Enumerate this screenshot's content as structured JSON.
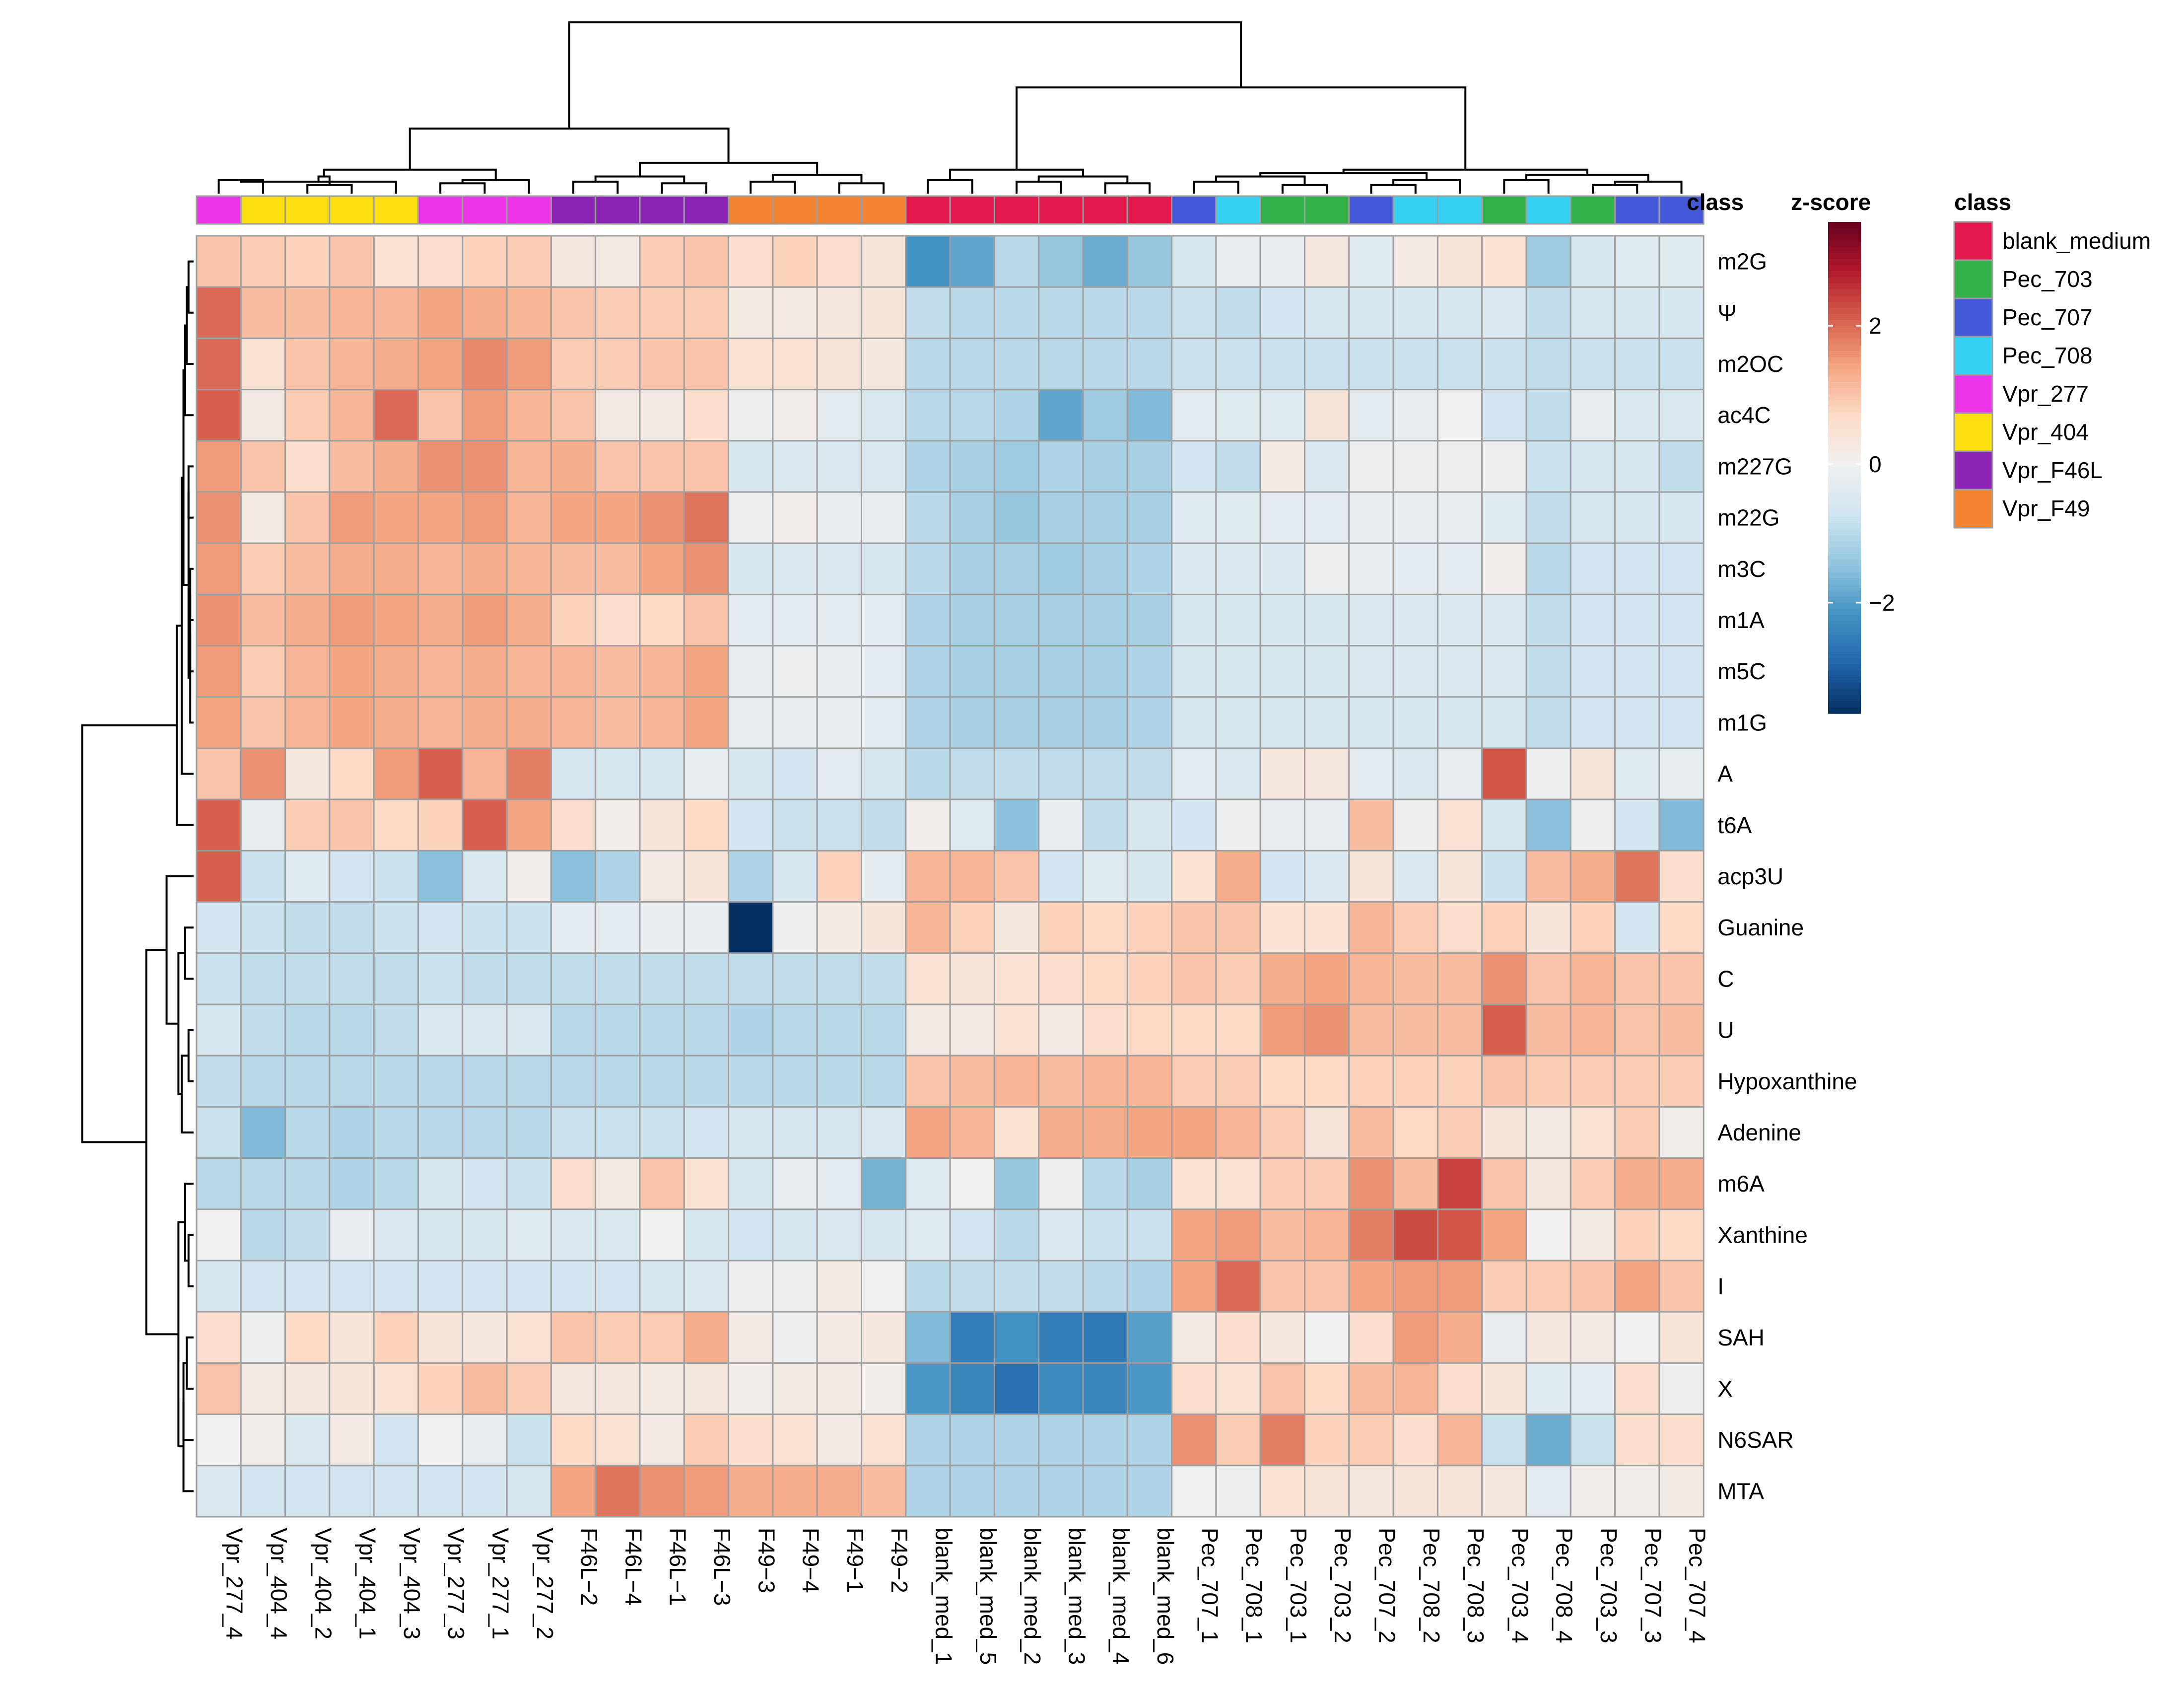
{
  "chart_data": {
    "type": "heatmap",
    "title": "",
    "columns": [
      "Vpr_277_4",
      "Vpr_404_4",
      "Vpr_404_2",
      "Vpr_404_1",
      "Vpr_404_3",
      "Vpr_277_3",
      "Vpr_277_1",
      "Vpr_277_2",
      "F46L−2",
      "F46L−4",
      "F46L−1",
      "F46L−3",
      "F49−3",
      "F49−4",
      "F49−1",
      "F49−2",
      "blank_med_1",
      "blank_med_5",
      "blank_med_2",
      "blank_med_3",
      "blank_med_4",
      "blank_med_6",
      "Pec_707_1",
      "Pec_708_1",
      "Pec_703_1",
      "Pec_703_2",
      "Pec_707_2",
      "Pec_708_2",
      "Pec_708_3",
      "Pec_703_4",
      "Pec_708_4",
      "Pec_703_3",
      "Pec_707_3",
      "Pec_707_4"
    ],
    "column_class": [
      "Vpr_277",
      "Vpr_404",
      "Vpr_404",
      "Vpr_404",
      "Vpr_404",
      "Vpr_277",
      "Vpr_277",
      "Vpr_277",
      "Vpr_F46L",
      "Vpr_F46L",
      "Vpr_F46L",
      "Vpr_F46L",
      "Vpr_F49",
      "Vpr_F49",
      "Vpr_F49",
      "Vpr_F49",
      "blank_medium",
      "blank_medium",
      "blank_medium",
      "blank_medium",
      "blank_medium",
      "blank_medium",
      "Pec_707",
      "Pec_708",
      "Pec_703",
      "Pec_703",
      "Pec_707",
      "Pec_708",
      "Pec_708",
      "Pec_703",
      "Pec_708",
      "Pec_703",
      "Pec_707",
      "Pec_707"
    ],
    "rows": [
      "m2G",
      "Ψ",
      "m2OC",
      "ac4C",
      "m227G",
      "m22G",
      "m3C",
      "m1A",
      "m5C",
      "m1G",
      "A",
      "t6A",
      "acp3U",
      "Guanine",
      "C",
      "U",
      "Hypoxanthine",
      "Adenine",
      "m6A",
      "Xanthine",
      "I",
      "SAH",
      "X",
      "N6SAR",
      "MTA"
    ],
    "values": [
      [
        1.0,
        0.9,
        0.8,
        1.0,
        0.5,
        0.6,
        0.8,
        0.9,
        0.3,
        0.2,
        0.9,
        1.0,
        0.6,
        0.8,
        0.6,
        0.4,
        -2.2,
        -1.9,
        -1.0,
        -1.4,
        -1.8,
        -1.4,
        -0.6,
        -0.2,
        -0.2,
        0.3,
        -0.4,
        0.2,
        0.4,
        0.5,
        -1.3,
        -0.6,
        -0.4,
        -0.4
      ],
      [
        2.0,
        1.1,
        1.1,
        1.2,
        1.2,
        1.4,
        1.3,
        1.2,
        1.0,
        0.9,
        0.9,
        0.9,
        0.2,
        0.2,
        0.3,
        0.4,
        -0.9,
        -1.0,
        -1.0,
        -1.0,
        -1.0,
        -1.0,
        -0.8,
        -0.9,
        -0.7,
        -0.6,
        -0.6,
        -0.6,
        -0.6,
        -0.5,
        -0.9,
        -0.6,
        -0.6,
        -0.6
      ],
      [
        2.0,
        0.5,
        1.0,
        1.2,
        1.3,
        1.4,
        1.7,
        1.5,
        0.9,
        0.9,
        1.0,
        1.0,
        0.5,
        0.5,
        0.4,
        0.3,
        -1.0,
        -1.0,
        -1.0,
        -1.0,
        -1.0,
        -1.0,
        -0.8,
        -0.8,
        -0.8,
        -0.8,
        -0.8,
        -0.8,
        -0.8,
        -0.8,
        -0.9,
        -0.8,
        -0.8,
        -0.8
      ],
      [
        2.1,
        0.2,
        0.9,
        1.2,
        2.0,
        1.0,
        1.5,
        1.2,
        1.0,
        0.2,
        0.2,
        0.6,
        -0.1,
        0.1,
        -0.3,
        -0.5,
        -1.0,
        -1.0,
        -1.1,
        -1.9,
        -1.3,
        -1.6,
        -0.3,
        -0.4,
        -0.4,
        0.4,
        -0.3,
        -0.2,
        0.0,
        -0.7,
        -0.9,
        -0.2,
        -0.5,
        -0.5
      ],
      [
        1.5,
        1.0,
        0.6,
        1.1,
        1.3,
        1.6,
        1.6,
        1.2,
        1.3,
        1.0,
        1.0,
        1.0,
        -0.6,
        -0.5,
        -0.5,
        -0.5,
        -1.1,
        -1.2,
        -1.3,
        -1.1,
        -1.2,
        -1.2,
        -0.7,
        -0.9,
        0.2,
        -0.5,
        -0.1,
        -0.1,
        -0.1,
        -0.1,
        -0.8,
        -0.6,
        -0.6,
        -0.9
      ],
      [
        1.6,
        0.2,
        1.0,
        1.5,
        1.4,
        1.4,
        1.5,
        1.2,
        1.4,
        1.4,
        1.6,
        1.9,
        -0.1,
        0.1,
        -0.2,
        -0.2,
        -1.0,
        -1.2,
        -1.4,
        -1.2,
        -1.2,
        -1.2,
        -0.4,
        -0.4,
        -0.3,
        -0.3,
        -0.2,
        -0.2,
        -0.2,
        -0.4,
        -0.9,
        -0.6,
        -0.6,
        -0.6
      ],
      [
        1.5,
        0.9,
        1.1,
        1.3,
        1.3,
        1.2,
        1.3,
        1.2,
        1.1,
        1.1,
        1.4,
        1.6,
        -0.6,
        -0.5,
        -0.5,
        -0.6,
        -1.0,
        -1.2,
        -1.2,
        -1.3,
        -1.2,
        -1.1,
        -0.5,
        -0.5,
        -0.5,
        -0.1,
        -0.2,
        -0.3,
        -0.3,
        0.1,
        -1.0,
        -0.7,
        -0.7,
        -0.7
      ],
      [
        1.6,
        1.1,
        1.3,
        1.5,
        1.4,
        1.3,
        1.5,
        1.3,
        0.8,
        0.6,
        0.7,
        1.0,
        -0.3,
        -0.3,
        -0.3,
        -0.3,
        -1.1,
        -1.2,
        -1.2,
        -1.2,
        -1.2,
        -1.2,
        -0.6,
        -0.6,
        -0.6,
        -0.6,
        -0.5,
        -0.5,
        -0.5,
        -0.5,
        -0.9,
        -0.7,
        -0.7,
        -0.7
      ],
      [
        1.5,
        0.9,
        1.2,
        1.4,
        1.3,
        1.2,
        1.3,
        1.2,
        1.2,
        1.1,
        1.2,
        1.4,
        -0.2,
        -0.1,
        -0.2,
        -0.3,
        -1.1,
        -1.2,
        -1.2,
        -1.2,
        -1.2,
        -1.1,
        -0.6,
        -0.6,
        -0.6,
        -0.6,
        -0.5,
        -0.5,
        -0.5,
        -0.5,
        -0.9,
        -0.7,
        -0.7,
        -0.7
      ],
      [
        1.4,
        1.0,
        1.2,
        1.4,
        1.3,
        1.2,
        1.3,
        1.3,
        1.2,
        1.1,
        1.2,
        1.4,
        -0.2,
        -0.2,
        -0.2,
        -0.3,
        -1.1,
        -1.2,
        -1.2,
        -1.2,
        -1.2,
        -1.1,
        -0.6,
        -0.6,
        -0.6,
        -0.6,
        -0.6,
        -0.6,
        -0.6,
        -0.6,
        -0.9,
        -0.7,
        -0.7,
        -0.7
      ],
      [
        1.0,
        1.6,
        0.3,
        0.7,
        1.5,
        2.1,
        1.2,
        1.8,
        -0.6,
        -0.6,
        -0.6,
        -0.2,
        -0.6,
        -0.7,
        -0.3,
        -0.6,
        -1.0,
        -0.9,
        -0.9,
        -0.9,
        -0.9,
        -0.9,
        -0.3,
        -0.5,
        0.3,
        0.3,
        -0.3,
        -0.5,
        -0.2,
        2.2,
        -0.1,
        0.4,
        -0.4,
        -0.2
      ],
      [
        2.1,
        -0.2,
        0.9,
        1.0,
        0.7,
        0.8,
        2.1,
        1.4,
        0.6,
        0.1,
        0.4,
        0.7,
        -0.7,
        -0.8,
        -0.8,
        -0.9,
        0.1,
        -0.4,
        -1.5,
        -0.2,
        -0.9,
        -0.6,
        -0.7,
        -0.1,
        -0.2,
        -0.2,
        1.1,
        -0.1,
        0.5,
        -0.6,
        -1.5,
        -0.1,
        -0.7,
        -1.6
      ],
      [
        2.1,
        -0.8,
        -0.4,
        -0.7,
        -0.8,
        -1.5,
        -0.5,
        0.1,
        -1.5,
        -1.1,
        0.2,
        0.4,
        -1.1,
        -0.6,
        0.8,
        -0.3,
        1.2,
        1.2,
        1.0,
        -0.7,
        -0.4,
        -0.6,
        0.5,
        1.3,
        -0.7,
        -0.5,
        0.4,
        -0.5,
        0.4,
        -0.8,
        1.1,
        1.3,
        1.9,
        0.6
      ],
      [
        -0.7,
        -0.8,
        -0.9,
        -0.9,
        -0.8,
        -0.7,
        -0.8,
        -0.8,
        -0.3,
        -0.3,
        -0.2,
        -0.2,
        -3.6,
        -0.1,
        0.2,
        0.4,
        1.2,
        0.8,
        0.3,
        0.8,
        0.7,
        0.8,
        1.0,
        1.0,
        0.5,
        0.5,
        1.2,
        0.9,
        0.6,
        0.8,
        0.4,
        0.8,
        -0.7,
        0.7
      ],
      [
        -0.8,
        -0.9,
        -0.9,
        -0.9,
        -0.9,
        -0.8,
        -0.9,
        -0.9,
        -0.9,
        -0.9,
        -0.9,
        -0.9,
        -0.9,
        -0.9,
        -0.9,
        -0.9,
        0.5,
        0.4,
        0.5,
        0.6,
        0.7,
        0.8,
        1.0,
        0.9,
        1.3,
        1.4,
        1.2,
        1.1,
        1.1,
        1.6,
        1.0,
        1.2,
        1.0,
        1.0
      ],
      [
        -0.6,
        -0.9,
        -1.0,
        -1.0,
        -0.9,
        -0.5,
        -0.5,
        -0.5,
        -1.0,
        -1.0,
        -1.0,
        -1.0,
        -1.1,
        -1.0,
        -1.0,
        -1.0,
        0.2,
        0.2,
        0.5,
        0.2,
        0.6,
        0.7,
        0.7,
        0.7,
        1.5,
        1.6,
        1.1,
        1.1,
        1.1,
        2.1,
        1.1,
        1.2,
        1.0,
        1.1
      ],
      [
        -0.9,
        -1.0,
        -1.0,
        -1.0,
        -1.0,
        -1.0,
        -1.0,
        -1.0,
        -1.0,
        -1.0,
        -1.0,
        -1.0,
        -1.0,
        -1.0,
        -1.0,
        -1.0,
        1.0,
        1.1,
        1.2,
        1.1,
        1.2,
        1.2,
        0.9,
        0.9,
        0.7,
        0.7,
        0.8,
        0.8,
        0.8,
        1.0,
        0.9,
        0.9,
        0.9,
        0.9
      ],
      [
        -0.8,
        -1.6,
        -1.0,
        -1.1,
        -1.0,
        -1.0,
        -1.0,
        -1.0,
        -0.8,
        -0.8,
        -0.8,
        -0.7,
        -0.6,
        -0.6,
        -0.6,
        -0.5,
        1.4,
        1.2,
        0.5,
        1.3,
        1.3,
        1.4,
        1.4,
        1.2,
        0.9,
        0.4,
        1.1,
        0.7,
        0.9,
        0.4,
        0.2,
        0.5,
        0.9,
        0.1
      ],
      [
        -1.0,
        -1.0,
        -1.0,
        -1.1,
        -1.0,
        -0.6,
        -0.7,
        -0.8,
        0.6,
        0.2,
        1.0,
        0.5,
        -0.6,
        -0.2,
        -0.3,
        -1.7,
        -0.4,
        0.0,
        -1.4,
        -0.1,
        -1.0,
        -1.2,
        0.5,
        0.5,
        0.9,
        0.9,
        1.6,
        1.1,
        2.4,
        1.0,
        0.3,
        0.9,
        1.3,
        1.3
      ],
      [
        0.0,
        -1.0,
        -0.9,
        -0.2,
        -0.5,
        -0.6,
        -0.6,
        -0.4,
        -0.5,
        -0.5,
        0.0,
        -0.6,
        -0.7,
        -0.6,
        -0.5,
        -0.6,
        -0.4,
        -0.7,
        -1.0,
        -0.5,
        -0.8,
        -0.8,
        1.4,
        1.5,
        1.1,
        1.2,
        1.8,
        2.3,
        2.2,
        1.4,
        0.0,
        0.2,
        0.8,
        0.7
      ],
      [
        -0.6,
        -0.7,
        -0.7,
        -0.7,
        -0.7,
        -0.7,
        -0.7,
        -0.7,
        -0.7,
        -0.7,
        -0.6,
        -0.5,
        -0.1,
        -0.1,
        0.2,
        0.0,
        -1.0,
        -0.9,
        -0.9,
        -0.9,
        -1.0,
        -1.1,
        1.4,
        2.0,
        1.0,
        1.0,
        1.4,
        1.5,
        1.5,
        0.9,
        0.9,
        1.0,
        1.4,
        1.0
      ],
      [
        0.6,
        -0.1,
        0.7,
        0.4,
        0.8,
        0.4,
        0.3,
        0.5,
        1.0,
        0.9,
        0.9,
        1.3,
        0.2,
        -0.1,
        0.2,
        0.3,
        -1.6,
        -2.5,
        -2.2,
        -2.5,
        -2.6,
        -2.0,
        0.2,
        0.6,
        0.3,
        0.0,
        0.6,
        1.5,
        1.3,
        -0.2,
        0.3,
        0.2,
        0.0,
        0.4
      ],
      [
        1.0,
        0.2,
        0.3,
        0.4,
        0.5,
        0.8,
        1.1,
        0.9,
        0.3,
        0.3,
        0.2,
        0.3,
        0.1,
        0.2,
        0.2,
        0.1,
        -2.1,
        -2.4,
        -2.7,
        -2.3,
        -2.4,
        -2.1,
        0.6,
        0.5,
        1.0,
        0.7,
        1.1,
        1.2,
        0.6,
        0.4,
        -0.4,
        -0.3,
        0.6,
        -0.1
      ],
      [
        0.0,
        0.1,
        -0.5,
        0.2,
        -0.7,
        0.0,
        -0.2,
        -0.8,
        0.7,
        0.5,
        0.2,
        0.9,
        0.6,
        0.5,
        0.2,
        0.5,
        -1.1,
        -1.1,
        -1.1,
        -1.1,
        -1.1,
        -1.1,
        1.6,
        0.9,
        1.8,
        0.8,
        0.9,
        0.6,
        1.2,
        -0.8,
        -1.8,
        -0.8,
        0.6,
        0.6
      ],
      [
        -0.5,
        -0.7,
        -0.7,
        -0.7,
        -0.7,
        -0.7,
        -0.7,
        -0.6,
        1.4,
        1.9,
        1.6,
        1.5,
        1.3,
        1.3,
        1.3,
        1.1,
        -1.1,
        -1.1,
        -1.1,
        -1.1,
        -1.1,
        -1.1,
        0.0,
        -0.1,
        0.5,
        0.4,
        0.3,
        0.4,
        0.4,
        0.3,
        -0.3,
        0.1,
        0.1,
        0.2
      ]
    ],
    "color_scale": {
      "title": "z-score",
      "ticks": [
        {
          "value": 2,
          "label": "2"
        },
        {
          "value": 0,
          "label": "0"
        },
        {
          "value": -2,
          "label": "−2"
        }
      ],
      "range": [
        -3.6,
        3.5
      ],
      "stops": [
        "#053061",
        "#2166ac",
        "#4393c3",
        "#92c5de",
        "#d1e5f0",
        "#f0f0f0",
        "#fddbc7",
        "#f4a582",
        "#d6604d",
        "#b2182b",
        "#67001f"
      ]
    },
    "annotation_label": "class",
    "legend": {
      "title": "class",
      "entries": [
        {
          "name": "blank_medium",
          "color": "#e3184c"
        },
        {
          "name": "Pec_703",
          "color": "#34b14a"
        },
        {
          "name": "Pec_707",
          "color": "#4459d8"
        },
        {
          "name": "Pec_708",
          "color": "#35d2f3"
        },
        {
          "name": "Vpr_277",
          "color": "#ee34e8"
        },
        {
          "name": "Vpr_404",
          "color": "#fbdf10"
        },
        {
          "name": "Vpr_F46L",
          "color": "#8c22b4"
        },
        {
          "name": "Vpr_F49",
          "color": "#f48431"
        }
      ]
    },
    "column_dendrogram": [
      [
        0,
        1,
        0.08
      ],
      [
        2,
        3,
        0.05
      ],
      [
        34,
        4,
        0.07
      ],
      [
        35,
        36,
        0.1
      ],
      [
        5,
        6,
        0.06
      ],
      [
        38,
        7,
        0.08
      ],
      [
        37,
        39,
        0.14
      ],
      [
        8,
        9,
        0.07
      ],
      [
        10,
        11,
        0.06
      ],
      [
        41,
        42,
        0.1
      ],
      [
        12,
        13,
        0.07
      ],
      [
        14,
        15,
        0.06
      ],
      [
        44,
        45,
        0.11
      ],
      [
        43,
        46,
        0.18
      ],
      [
        40,
        47,
        0.38
      ],
      [
        16,
        17,
        0.08
      ],
      [
        18,
        19,
        0.07
      ],
      [
        20,
        21,
        0.06
      ],
      [
        50,
        51,
        0.1
      ],
      [
        49,
        52,
        0.14
      ],
      [
        22,
        23,
        0.07
      ],
      [
        24,
        25,
        0.05
      ],
      [
        54,
        55,
        0.1
      ],
      [
        26,
        27,
        0.05
      ],
      [
        57,
        28,
        0.08
      ],
      [
        56,
        58,
        0.12
      ],
      [
        29,
        30,
        0.08
      ],
      [
        31,
        32,
        0.05
      ],
      [
        61,
        33,
        0.07
      ],
      [
        60,
        62,
        0.11
      ],
      [
        59,
        63,
        0.14
      ],
      [
        53,
        64,
        0.62
      ],
      [
        48,
        65,
        1.0
      ]
    ],
    "row_dendrogram": [
      [
        0,
        1,
        0.03
      ],
      [
        25,
        2,
        0.04
      ],
      [
        26,
        3,
        0.05
      ],
      [
        4,
        5,
        0.03
      ],
      [
        6,
        7,
        0.02
      ],
      [
        29,
        8,
        0.02
      ],
      [
        30,
        9,
        0.02
      ],
      [
        28,
        31,
        0.03
      ],
      [
        27,
        32,
        0.06
      ],
      [
        33,
        10,
        0.07
      ],
      [
        34,
        11,
        0.1
      ],
      [
        13,
        14,
        0.05
      ],
      [
        15,
        16,
        0.03
      ],
      [
        37,
        17,
        0.07
      ],
      [
        36,
        38,
        0.09
      ],
      [
        12,
        39,
        0.16
      ],
      [
        19,
        20,
        0.03
      ],
      [
        18,
        41,
        0.05
      ],
      [
        21,
        22,
        0.04
      ],
      [
        43,
        23,
        0.06
      ],
      [
        44,
        24,
        0.06
      ],
      [
        42,
        45,
        0.09
      ],
      [
        40,
        46,
        0.28
      ],
      [
        35,
        47,
        0.66
      ]
    ]
  }
}
